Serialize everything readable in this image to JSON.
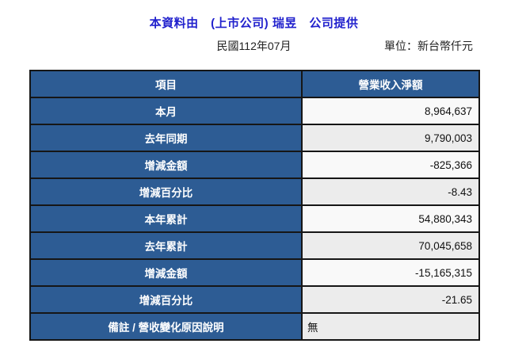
{
  "header": {
    "title": "本資料由　(上市公司) 瑞昱　公司提供",
    "period": "民國112年07月",
    "unit": "單位：新台幣仟元"
  },
  "table": {
    "columns": [
      "項目",
      "營業收入淨額"
    ],
    "rows": [
      {
        "label": "本月",
        "value": "8,964,637"
      },
      {
        "label": "去年同期",
        "value": "9,790,003"
      },
      {
        "label": "增減金額",
        "value": "-825,366"
      },
      {
        "label": "增減百分比",
        "value": "-8.43"
      },
      {
        "label": "本年累計",
        "value": "54,880,343"
      },
      {
        "label": "去年累計",
        "value": "70,045,658"
      },
      {
        "label": "增減金額",
        "value": "-15,165,315"
      },
      {
        "label": "增減百分比",
        "value": "-21.65"
      },
      {
        "label": "備註 / 營收變化原因說明",
        "value": "無"
      }
    ]
  },
  "colors": {
    "title_blue": "#2121cd",
    "header_cell_blue": "#2d5c94",
    "border": "#161616",
    "row_light": "#f9f9f9",
    "row_gray": "#ececec"
  }
}
